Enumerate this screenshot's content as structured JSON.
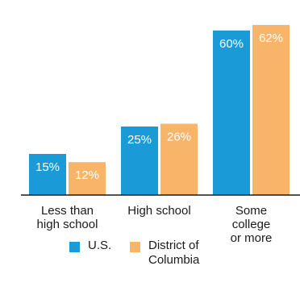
{
  "chart_data": {
    "type": "bar",
    "categories": [
      "Less than\nhigh school",
      "High school",
      "Some\ncollege\nor more"
    ],
    "series": [
      {
        "name": "U.S.",
        "values": [
          15,
          25,
          60
        ],
        "labels": [
          "15%",
          "25%",
          "60%"
        ],
        "color": "#1a9bd7"
      },
      {
        "name": "District of\nColumbia",
        "values": [
          12,
          26,
          62
        ],
        "labels": [
          "12%",
          "26%",
          "62%"
        ],
        "color": "#f8b56a"
      }
    ],
    "ylim": [
      0,
      62
    ],
    "grid": false,
    "legend_position": "bottom"
  }
}
